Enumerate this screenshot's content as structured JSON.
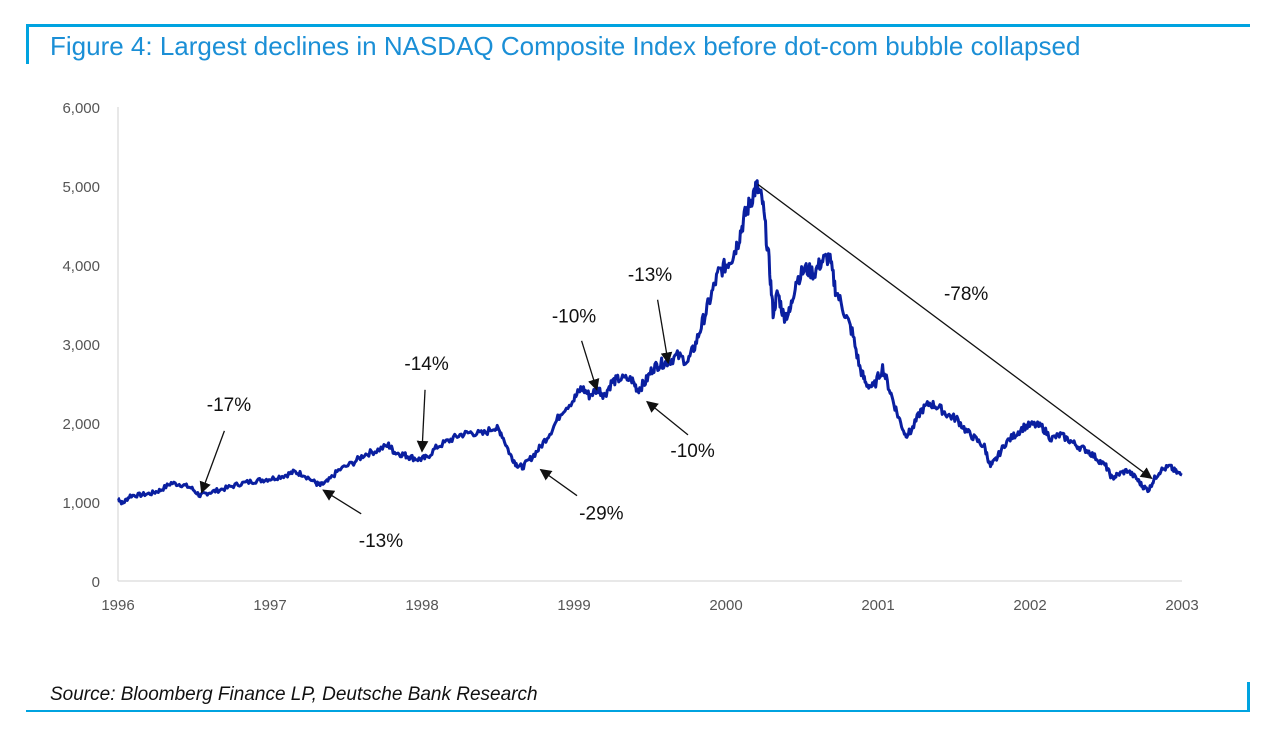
{
  "title": "Figure 4: Largest declines in NASDAQ Composite Index before dot-com bubble collapsed",
  "source": "Source: Bloomberg Finance LP, Deutsche Bank Research",
  "colors": {
    "accent": "#00a3e0",
    "title": "#1b8fd6",
    "series": "#0a1fa0"
  },
  "chart_data": {
    "type": "line",
    "title": "",
    "xlabel": "",
    "ylabel": "",
    "xlim": [
      1996,
      2003
    ],
    "ylim": [
      0,
      6000
    ],
    "x_ticks": [
      "1996",
      "1997",
      "1998",
      "1999",
      "2000",
      "2001",
      "2002",
      "2003"
    ],
    "y_ticks": [
      "0",
      "1,000",
      "2,000",
      "3,000",
      "4,000",
      "5,000",
      "6,000"
    ],
    "grid": false,
    "series": [
      {
        "points": [
          [
            1996.0,
            1050
          ],
          [
            1996.03,
            980
          ],
          [
            1996.08,
            1080
          ],
          [
            1996.15,
            1090
          ],
          [
            1996.22,
            1110
          ],
          [
            1996.28,
            1150
          ],
          [
            1996.35,
            1240
          ],
          [
            1996.42,
            1220
          ],
          [
            1996.48,
            1180
          ],
          [
            1996.54,
            1080
          ],
          [
            1996.58,
            1110
          ],
          [
            1996.64,
            1140
          ],
          [
            1996.72,
            1180
          ],
          [
            1996.8,
            1230
          ],
          [
            1996.88,
            1260
          ],
          [
            1996.95,
            1280
          ],
          [
            1997.02,
            1300
          ],
          [
            1997.1,
            1340
          ],
          [
            1997.16,
            1380
          ],
          [
            1997.22,
            1350
          ],
          [
            1997.3,
            1240
          ],
          [
            1997.33,
            1210
          ],
          [
            1997.38,
            1260
          ],
          [
            1997.45,
            1400
          ],
          [
            1997.55,
            1500
          ],
          [
            1997.62,
            1600
          ],
          [
            1997.7,
            1650
          ],
          [
            1997.78,
            1720
          ],
          [
            1997.82,
            1630
          ],
          [
            1997.88,
            1600
          ],
          [
            1997.92,
            1570
          ],
          [
            1997.98,
            1540
          ],
          [
            1998.03,
            1560
          ],
          [
            1998.1,
            1700
          ],
          [
            1998.18,
            1780
          ],
          [
            1998.25,
            1850
          ],
          [
            1998.32,
            1880
          ],
          [
            1998.4,
            1860
          ],
          [
            1998.48,
            1950
          ],
          [
            1998.52,
            1880
          ],
          [
            1998.58,
            1600
          ],
          [
            1998.62,
            1480
          ],
          [
            1998.66,
            1440
          ],
          [
            1998.72,
            1560
          ],
          [
            1998.78,
            1700
          ],
          [
            1998.85,
            1900
          ],
          [
            1998.92,
            2150
          ],
          [
            1999.0,
            2300
          ],
          [
            1999.05,
            2450
          ],
          [
            1999.1,
            2350
          ],
          [
            1999.16,
            2430
          ],
          [
            1999.2,
            2350
          ],
          [
            1999.25,
            2520
          ],
          [
            1999.3,
            2560
          ],
          [
            1999.38,
            2550
          ],
          [
            1999.42,
            2420
          ],
          [
            1999.47,
            2520
          ],
          [
            1999.52,
            2700
          ],
          [
            1999.57,
            2750
          ],
          [
            1999.62,
            2780
          ],
          [
            1999.68,
            2850
          ],
          [
            1999.75,
            2780
          ],
          [
            1999.8,
            3000
          ],
          [
            1999.85,
            3300
          ],
          [
            1999.9,
            3600
          ],
          [
            1999.95,
            3900
          ],
          [
            2000.0,
            4000
          ],
          [
            2000.04,
            4100
          ],
          [
            2000.08,
            4300
          ],
          [
            2000.12,
            4600
          ],
          [
            2000.16,
            4800
          ],
          [
            2000.2,
            5000
          ],
          [
            2000.24,
            4800
          ],
          [
            2000.28,
            4100
          ],
          [
            2000.31,
            3400
          ],
          [
            2000.34,
            3650
          ],
          [
            2000.38,
            3350
          ],
          [
            2000.42,
            3400
          ],
          [
            2000.46,
            3800
          ],
          [
            2000.52,
            3950
          ],
          [
            2000.58,
            3900
          ],
          [
            2000.63,
            4050
          ],
          [
            2000.68,
            4100
          ],
          [
            2000.72,
            3700
          ],
          [
            2000.78,
            3400
          ],
          [
            2000.83,
            3150
          ],
          [
            2000.88,
            2700
          ],
          [
            2000.92,
            2500
          ],
          [
            2000.97,
            2450
          ],
          [
            2001.03,
            2700
          ],
          [
            2001.08,
            2400
          ],
          [
            2001.13,
            2100
          ],
          [
            2001.18,
            1850
          ],
          [
            2001.22,
            1900
          ],
          [
            2001.28,
            2150
          ],
          [
            2001.34,
            2250
          ],
          [
            2001.4,
            2200
          ],
          [
            2001.46,
            2100
          ],
          [
            2001.52,
            2050
          ],
          [
            2001.58,
            1900
          ],
          [
            2001.64,
            1800
          ],
          [
            2001.7,
            1700
          ],
          [
            2001.74,
            1450
          ],
          [
            2001.78,
            1550
          ],
          [
            2001.84,
            1750
          ],
          [
            2001.9,
            1850
          ],
          [
            2001.96,
            1950
          ],
          [
            2002.02,
            1980
          ],
          [
            2002.08,
            1950
          ],
          [
            2002.14,
            1800
          ],
          [
            2002.2,
            1850
          ],
          [
            2002.26,
            1780
          ],
          [
            2002.32,
            1700
          ],
          [
            2002.38,
            1650
          ],
          [
            2002.44,
            1550
          ],
          [
            2002.5,
            1450
          ],
          [
            2002.54,
            1300
          ],
          [
            2002.58,
            1350
          ],
          [
            2002.64,
            1400
          ],
          [
            2002.7,
            1300
          ],
          [
            2002.74,
            1200
          ],
          [
            2002.78,
            1150
          ],
          [
            2002.82,
            1300
          ],
          [
            2002.86,
            1400
          ],
          [
            2002.92,
            1450
          ],
          [
            2002.96,
            1380
          ],
          [
            2003.0,
            1340
          ]
        ]
      }
    ],
    "annotations": [
      {
        "text": "-17%",
        "label": [
          1996.73,
          2150
        ],
        "arrow_from": [
          1996.7,
          1900
        ],
        "arrow_to": [
          1996.55,
          1120
        ]
      },
      {
        "text": "-13%",
        "label": [
          1997.73,
          430
        ],
        "arrow_from": [
          1997.6,
          850
        ],
        "arrow_to": [
          1997.35,
          1150
        ]
      },
      {
        "text": "-14%",
        "label": [
          1998.03,
          2670
        ],
        "arrow_from": [
          1998.02,
          2420
        ],
        "arrow_to": [
          1998.0,
          1640
        ]
      },
      {
        "text": "-29%",
        "label": [
          1999.18,
          780
        ],
        "arrow_from": [
          1999.02,
          1080
        ],
        "arrow_to": [
          1998.78,
          1410
        ]
      },
      {
        "text": "-10%",
        "label": [
          1999.0,
          3270
        ],
        "arrow_from": [
          1999.05,
          3040
        ],
        "arrow_to": [
          1999.15,
          2420
        ]
      },
      {
        "text": "-13%",
        "label": [
          1999.5,
          3800
        ],
        "arrow_from": [
          1999.55,
          3560
        ],
        "arrow_to": [
          1999.62,
          2760
        ]
      },
      {
        "text": "-10%",
        "label": [
          1999.78,
          1570
        ],
        "arrow_from": [
          1999.75,
          1850
        ],
        "arrow_to": [
          1999.48,
          2270
        ]
      },
      {
        "text": "-78%",
        "label": [
          2001.58,
          3560
        ],
        "arrow_from": [
          2000.21,
          5020
        ],
        "arrow_to": [
          2002.8,
          1300
        ]
      }
    ]
  }
}
